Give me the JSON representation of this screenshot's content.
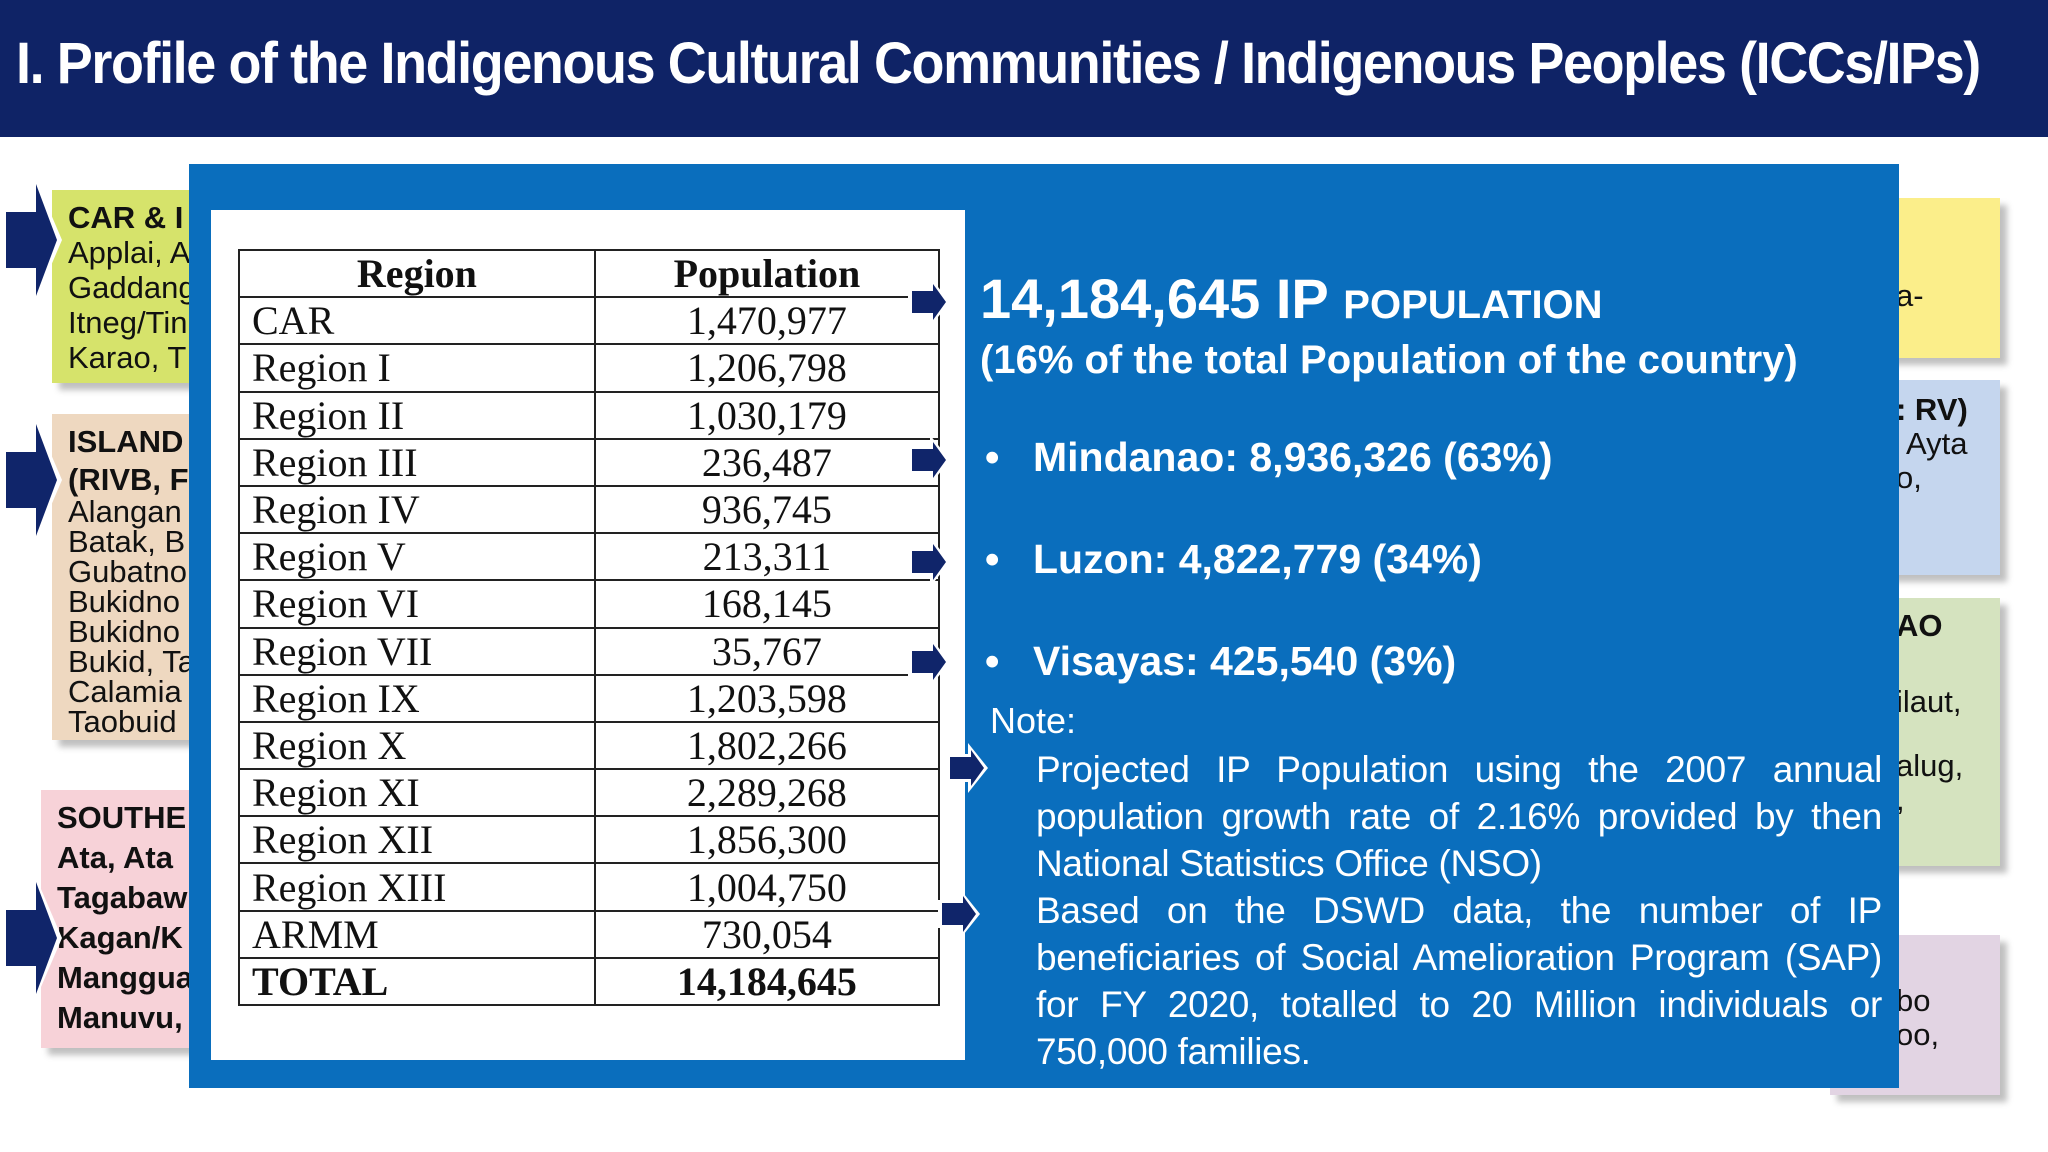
{
  "header": {
    "title": "I. Profile of the Indigenous Cultural Communities / Indigenous Peoples (ICCs/IPs)"
  },
  "background_boxes": {
    "car": {
      "lines": [
        "CAR & I",
        "Applai, A",
        "Gaddang",
        "Itneg/Tin",
        "Karao, T"
      ]
    },
    "island": {
      "lines": [
        "ISLAND",
        "(RIVB, F",
        "Alangan",
        "Batak, B",
        "Gubatno",
        "Bukidno",
        "Bukidno",
        "Bukid, Ta",
        "Calamia",
        "Taobuid"
      ]
    },
    "south": {
      "lines": [
        "SOUTHE",
        "Ata, Ata",
        "Tagabaw",
        "Kagan/K",
        "Manggua",
        "Manuvu,"
      ]
    },
    "right1": {
      "lines": [
        "a-"
      ]
    },
    "right2": {
      "lines": [
        ": RV)",
        "Ayta",
        "o,"
      ]
    },
    "right3": {
      "lines": [
        "AO",
        "ilaut,",
        "alug,",
        ","
      ]
    },
    "right4": {
      "lines": [
        "bo",
        "oo,"
      ]
    }
  },
  "population_table": {
    "headers": [
      "Region",
      "Population"
    ],
    "rows": [
      {
        "region": "CAR",
        "population": "1,470,977"
      },
      {
        "region": "Region I",
        "population": "1,206,798"
      },
      {
        "region": "Region II",
        "population": "1,030,179"
      },
      {
        "region": "Region III",
        "population": "236,487"
      },
      {
        "region": "Region IV",
        "population": "936,745"
      },
      {
        "region": "Region V",
        "population": "213,311"
      },
      {
        "region": "Region VI",
        "population": "168,145"
      },
      {
        "region": "Region VII",
        "population": "35,767"
      },
      {
        "region": "Region IX",
        "population": "1,203,598"
      },
      {
        "region": "Region X",
        "population": "1,802,266"
      },
      {
        "region": "Region XI",
        "population": "2,289,268"
      },
      {
        "region": "Region XII",
        "population": "1,856,300"
      },
      {
        "region": "Region XIII",
        "population": "1,004,750"
      },
      {
        "region": "ARMM",
        "population": "730,054"
      }
    ],
    "total": {
      "region": "TOTAL",
      "population": "14,184,645"
    }
  },
  "summary": {
    "headline_number": "14,184,645 IP",
    "headline_label": "POPULATION",
    "subline": "(16% of the total Population of the country)",
    "bullets": [
      "Mindanao: 8,936,326 (63%)",
      "Luzon: 4,822,779 (34%)",
      "Visayas: 425,540 (3%)"
    ],
    "note_label": "Note:",
    "notes": [
      "Projected IP Population using the 2007 annual population growth rate of 2.16% provided by then National Statistics Office (NSO)",
      "Based on the DSWD data, the number of IP beneficiaries of Social Amelioration Program (SAP) for FY 2020, totalled to 20 Million individuals or 750,000 families."
    ]
  },
  "colors": {
    "header_bg": "#0f2366",
    "overlay_bg": "#0a6ebd",
    "arrow": "#0f2366"
  }
}
